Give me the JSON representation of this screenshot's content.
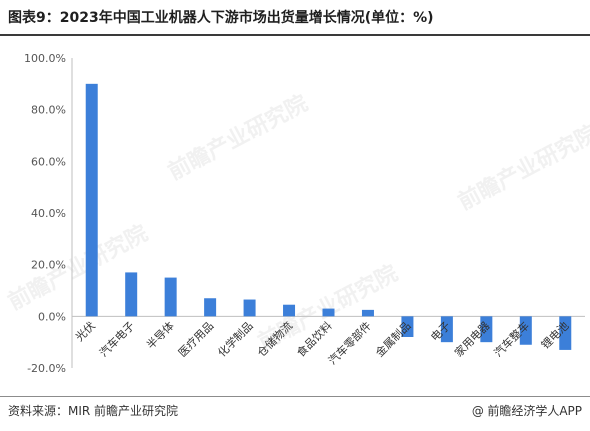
{
  "title": "图表9：2023年中国工业机器人下游市场出货量增长情况(单位：%)",
  "source": "资料来源：MIR 前瞻产业研究院",
  "brand": {
    "icon": "at-icon",
    "icon_glyph": "@",
    "label": "前瞻经济学人APP"
  },
  "watermark": "前瞻产业研究院",
  "colors": {
    "bar": "#3c7fd9",
    "axis": "#bfbfbf",
    "text": "#555555"
  },
  "chart_data": {
    "type": "bar",
    "title": "图表9：2023年中国工业机器人下游市场出货量增长情况(单位：%)",
    "categories": [
      "光伏",
      "汽车电子",
      "半导体",
      "医疗用品",
      "化学制品",
      "仓储物流",
      "食品饮料",
      "汽车零部件",
      "金属制品",
      "电子",
      "家用电器",
      "汽车整车",
      "锂电池"
    ],
    "values": [
      90.0,
      17.0,
      15.0,
      7.0,
      6.5,
      4.5,
      3.0,
      2.5,
      -8.0,
      -10.0,
      -10.0,
      -11.0,
      -13.0
    ],
    "ylim": [
      -20,
      100
    ],
    "yticks": [
      -20,
      0,
      20,
      40,
      60,
      80,
      100
    ],
    "ytick_labels": [
      "-20.0%",
      "0.0%",
      "20.0%",
      "40.0%",
      "60.0%",
      "80.0%",
      "100.0%"
    ],
    "xlabel": "",
    "ylabel": "",
    "grid": false,
    "legend": "none"
  }
}
